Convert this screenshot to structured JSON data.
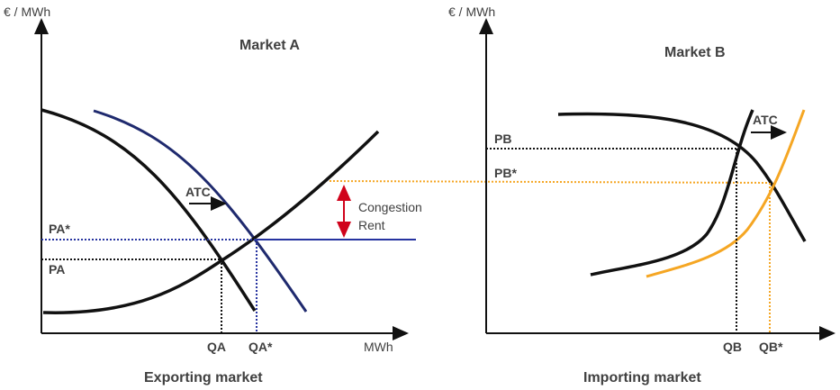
{
  "market_a": {
    "title": "Market A",
    "y_axis_label": "€ / MWh",
    "x_axis_label": "MWh",
    "price_labels": {
      "pa_star": "PA*",
      "pa": "PA"
    },
    "quantity_labels": {
      "qa": "QA",
      "qa_star": "QA*"
    },
    "atc_label": "ATC",
    "congestion_label_line1": "Congestion",
    "congestion_label_line2": "Rent",
    "caption": "Exporting market"
  },
  "market_b": {
    "title": "Market B",
    "y_axis_label": "€ / MWh",
    "price_labels": {
      "pb": "PB",
      "pb_star": "PB*"
    },
    "quantity_labels": {
      "qb": "QB",
      "qb_star": "QB*"
    },
    "atc_label": "ATC",
    "caption": "Importing market"
  },
  "colors": {
    "black_curve": "#111111",
    "navy_curve": "#1f2a6e",
    "blue_line": "#2633a0",
    "orange": "#f5a623",
    "red_arrow": "#d0021b",
    "text": "#404040"
  }
}
